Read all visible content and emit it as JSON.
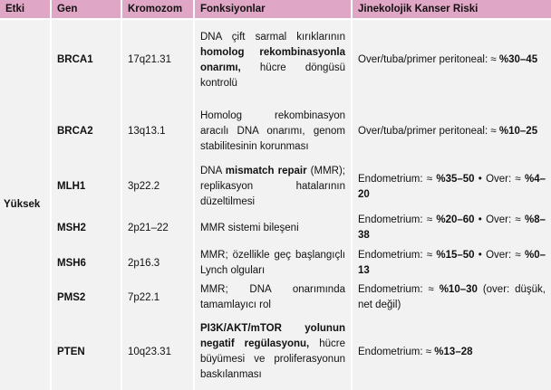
{
  "colors": {
    "header_bg": "#e0a6c6",
    "body_bg": "#f2f2f2",
    "border": "#ffffff",
    "text": "#111111"
  },
  "table": {
    "headers": [
      "Etki",
      "Gen",
      "Kromozom",
      "Fonksiyonlar",
      "Jinekolojik Kanser Riski"
    ],
    "etki_group_label": "Yüksek",
    "rows": [
      {
        "gene": "BRCA1",
        "chromosome": "17q21.31",
        "function_segments": [
          {
            "t": "DNA çift sarmal kırıklarının ",
            "b": false
          },
          {
            "t": "homolog rekombinasyonla onarımı,",
            "b": true
          },
          {
            "t": " hücre döngüsü kontrolü",
            "b": false
          }
        ],
        "risk_segments": [
          {
            "t": "Over/tuba/primer peritoneal: ≈ ",
            "b": false
          },
          {
            "t": "%30–45",
            "b": true
          }
        ]
      },
      {
        "gene": "BRCA2",
        "chromosome": "13q13.1",
        "function_segments": [
          {
            "t": "Homolog rekombinasyon aracılı DNA onarımı, genom stabilitesinin korunması",
            "b": false
          }
        ],
        "risk_segments": [
          {
            "t": "Over/tuba/primer peritoneal: ≈ ",
            "b": false
          },
          {
            "t": "%10–25",
            "b": true
          }
        ]
      },
      {
        "gene": "MLH1",
        "chromosome": "3p22.2",
        "function_segments": [
          {
            "t": "DNA ",
            "b": false
          },
          {
            "t": "mismatch repair",
            "b": true
          },
          {
            "t": " (MMR); replikasyon hatalarının düzeltilmesi",
            "b": false
          }
        ],
        "risk_segments": [
          {
            "t": "Endometrium: ≈ ",
            "b": false
          },
          {
            "t": "%35–50",
            "b": true
          },
          {
            "t": " • Over: ≈ ",
            "b": false
          },
          {
            "t": "%4–20",
            "b": true
          }
        ]
      },
      {
        "gene": "MSH2",
        "chromosome": "2p21–22",
        "function_segments": [
          {
            "t": "MMR sistemi bileşeni",
            "b": false
          }
        ],
        "risk_segments": [
          {
            "t": "Endometrium: ≈ ",
            "b": false
          },
          {
            "t": "%20–60",
            "b": true
          },
          {
            "t": " • Over: ≈ ",
            "b": false
          },
          {
            "t": "%8–38",
            "b": true
          }
        ]
      },
      {
        "gene": "MSH6",
        "chromosome": "2p16.3",
        "function_segments": [
          {
            "t": "MMR; özellikle geç başlangıçlı Lynch olguları",
            "b": false
          }
        ],
        "risk_segments": [
          {
            "t": "Endometrium: ≈ ",
            "b": false
          },
          {
            "t": "%15–50",
            "b": true
          },
          {
            "t": " • Over: ≈ ",
            "b": false
          },
          {
            "t": "%0–13",
            "b": true
          }
        ]
      },
      {
        "gene": "PMS2",
        "chromosome": "7p22.1",
        "function_segments": [
          {
            "t": "MMR; DNA onarımında tamamlayıcı rol",
            "b": false
          }
        ],
        "risk_segments": [
          {
            "t": "Endometrium: ≈ ",
            "b": false
          },
          {
            "t": "%10–30",
            "b": true
          },
          {
            "t": " (over: düşük, net değil)",
            "b": false
          }
        ]
      },
      {
        "gene": "PTEN",
        "chromosome": "10q23.31",
        "function_segments": [
          {
            "t": "PI3K/AKT/mTOR yolunun negatif regülasyonu,",
            "b": true
          },
          {
            "t": " hücre büyümesi ve proliferasyonun baskılanması",
            "b": false
          }
        ],
        "risk_segments": [
          {
            "t": "Endometrium: ≈ ",
            "b": false
          },
          {
            "t": "%13–28",
            "b": true
          }
        ]
      }
    ]
  }
}
